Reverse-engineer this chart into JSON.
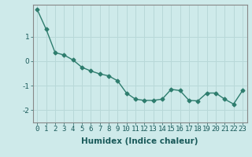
{
  "x": [
    0,
    1,
    2,
    3,
    4,
    5,
    6,
    7,
    8,
    9,
    10,
    11,
    12,
    13,
    14,
    15,
    16,
    17,
    18,
    19,
    20,
    21,
    22,
    23
  ],
  "y": [
    2.1,
    1.3,
    0.35,
    0.25,
    0.05,
    -0.25,
    -0.4,
    -0.52,
    -0.6,
    -0.8,
    -1.3,
    -1.55,
    -1.6,
    -1.6,
    -1.55,
    -1.15,
    -1.2,
    -1.6,
    -1.62,
    -1.3,
    -1.3,
    -1.55,
    -1.75,
    -1.2
  ],
  "line_color": "#2e7d6e",
  "marker": "D",
  "marker_size": 2.5,
  "linewidth": 1.0,
  "bg_color": "#ceeaea",
  "grid_color": "#b8d8d8",
  "xlabel": "Humidex (Indice chaleur)",
  "xlim": [
    -0.5,
    23.5
  ],
  "ylim": [
    -2.5,
    2.3
  ],
  "yticks": [
    -2,
    -1,
    0,
    1
  ],
  "xticks": [
    0,
    1,
    2,
    3,
    4,
    5,
    6,
    7,
    8,
    9,
    10,
    11,
    12,
    13,
    14,
    15,
    16,
    17,
    18,
    19,
    20,
    21,
    22,
    23
  ],
  "xlabel_fontsize": 7.5,
  "tick_fontsize": 6.5
}
